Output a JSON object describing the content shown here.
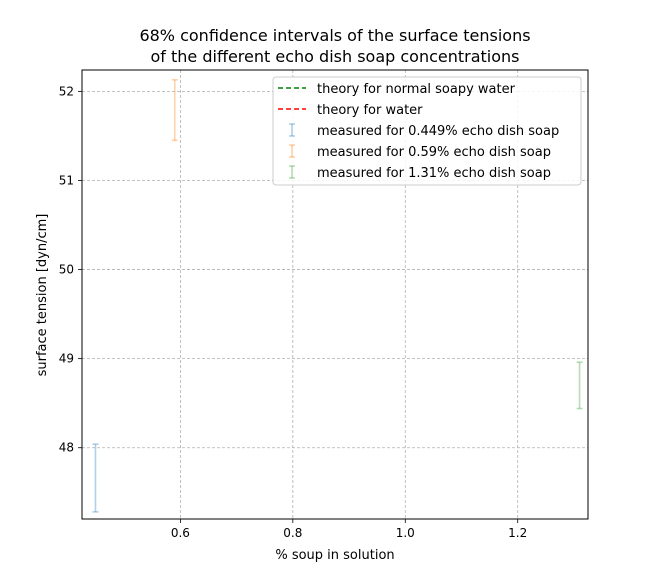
{
  "chart_data": {
    "type": "errorbar",
    "title": "68% confidence intervals of the surface tensions\nof the different echo dish soap concentrations",
    "title_lines": [
      "68% confidence intervals of the surface tensions",
      "of the different echo dish soap concentrations"
    ],
    "xlabel": "% soup in solution",
    "ylabel": "surface tension [dyn/cm]",
    "xlim": [
      0.425,
      1.325
    ],
    "ylim": [
      47.2,
      52.24
    ],
    "xticks": [
      0.6,
      0.8,
      1.0,
      1.2
    ],
    "xtick_labels": [
      "0.6",
      "0.8",
      "1.0",
      "1.2"
    ],
    "yticks": [
      48,
      49,
      50,
      51,
      52
    ],
    "ytick_labels": [
      "48",
      "49",
      "50",
      "51",
      "52"
    ],
    "grid": true,
    "legend_position": "upper right",
    "series": [
      {
        "name": "theory for normal soapy water",
        "kind": "hline",
        "style": "dashed",
        "color": "#008000"
      },
      {
        "name": "theory for water",
        "kind": "hline",
        "style": "dashed",
        "color": "#ff0000"
      },
      {
        "name": "measured for 0.449% echo dish soap",
        "kind": "errorbar",
        "x": 0.449,
        "y": 47.66,
        "yerr_low": 47.28,
        "yerr_high": 48.04,
        "color": "#1f77b4"
      },
      {
        "name": "measured for 0.59% echo dish soap",
        "kind": "errorbar",
        "x": 0.59,
        "y": 51.79,
        "yerr_low": 51.45,
        "yerr_high": 52.13,
        "color": "#ff7f0e"
      },
      {
        "name": "measured for 1.31% echo dish soap",
        "kind": "errorbar",
        "x": 1.31,
        "y": 48.7,
        "yerr_low": 48.44,
        "yerr_high": 48.96,
        "color": "#2ca02c"
      }
    ]
  }
}
